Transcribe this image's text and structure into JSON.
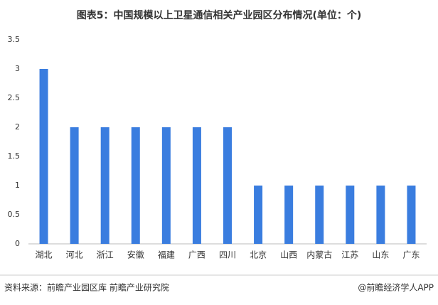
{
  "chart_data": {
    "type": "bar",
    "title": "图表5：中国规模以上卫星通信相关产业园区分布情况(单位：个)",
    "categories": [
      "湖北",
      "河北",
      "浙江",
      "安徽",
      "福建",
      "广西",
      "四川",
      "北京",
      "山西",
      "内蒙古",
      "江苏",
      "山东",
      "广东"
    ],
    "values": [
      3,
      2,
      2,
      2,
      2,
      2,
      2,
      1,
      1,
      1,
      1,
      1,
      1
    ],
    "color": "#3a7ddf",
    "ylim": [
      0,
      3.5
    ],
    "yticks": [
      0,
      0.5,
      1,
      1.5,
      2,
      2.5,
      3,
      3.5
    ],
    "grid": false,
    "source": "资料来源：前瞻产业园区库 前瞻产业研究院",
    "credit": "@前瞻经济学人APP"
  }
}
